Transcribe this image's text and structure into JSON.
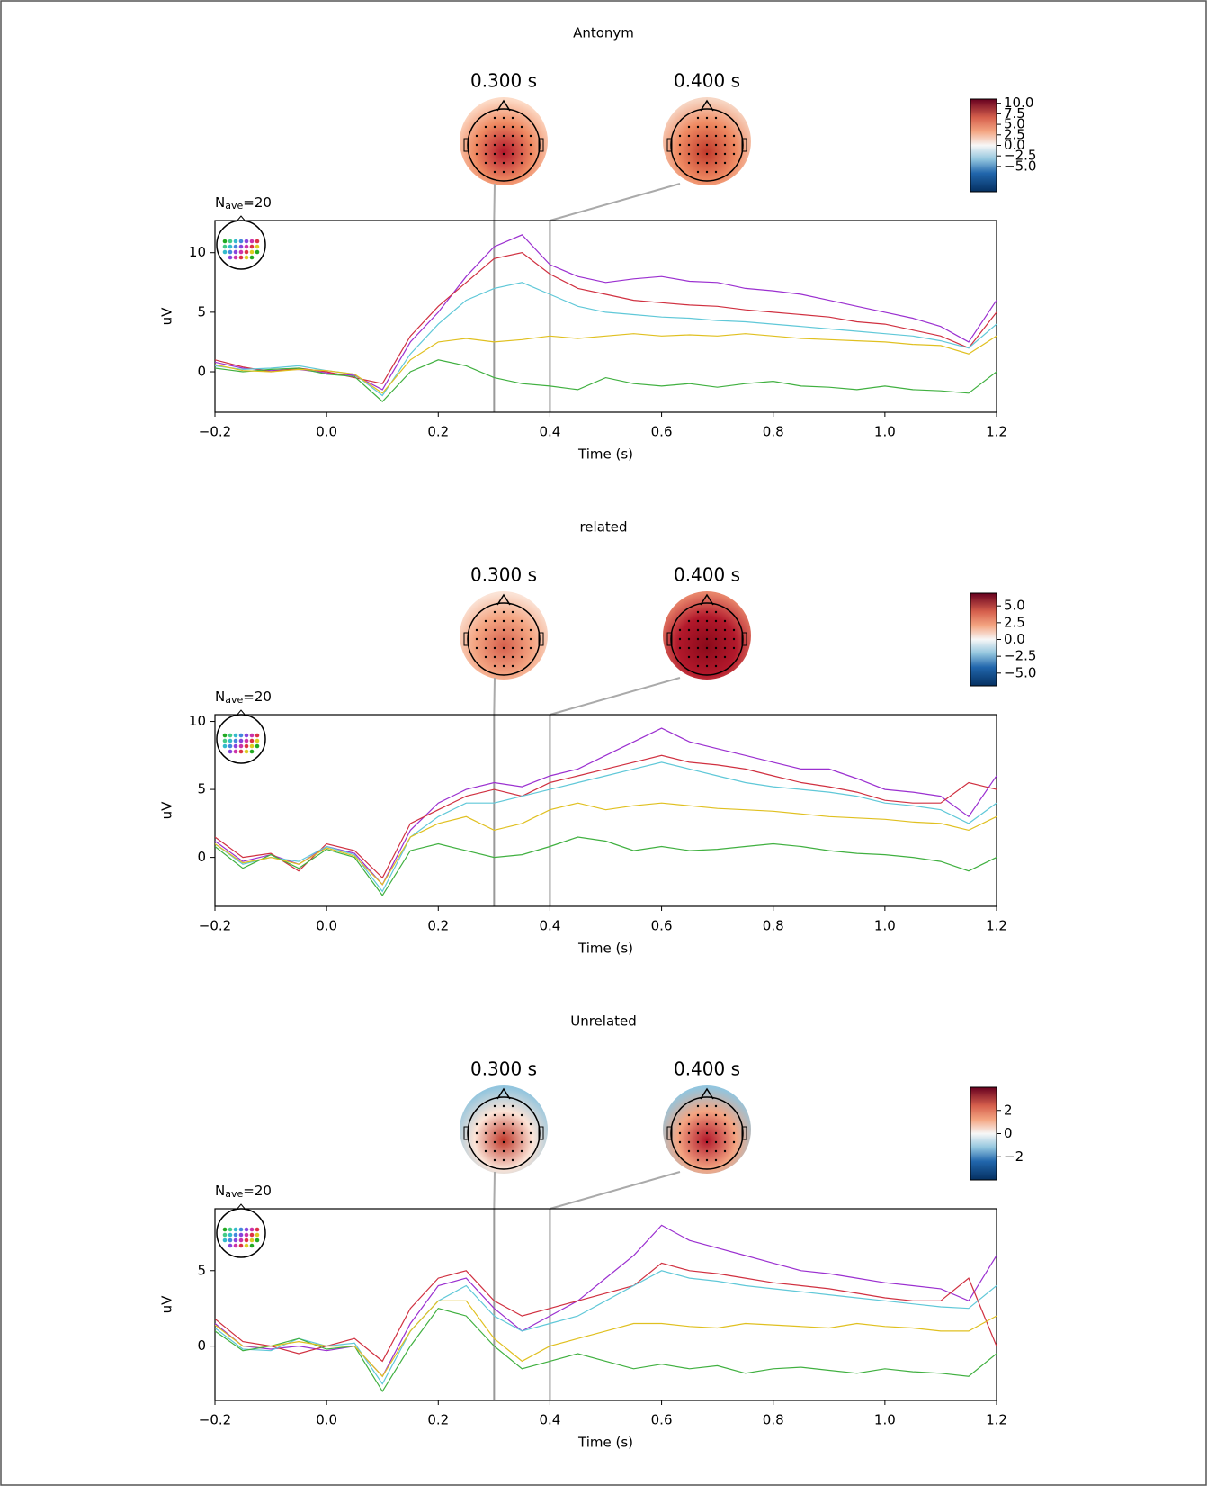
{
  "chart_data": [
    {
      "type": "line",
      "title": "Antonym",
      "annotation": [
        "N",
        "ave",
        "=20"
      ],
      "xlabel": "Time (s)",
      "ylabel": "uV",
      "x": [
        -0.2,
        -0.15,
        -0.1,
        -0.05,
        0,
        0.05,
        0.1,
        0.15,
        0.2,
        0.25,
        0.3,
        0.35,
        0.4,
        0.45,
        0.5,
        0.55,
        0.6,
        0.65,
        0.7,
        0.75,
        0.8,
        0.85,
        0.9,
        0.95,
        1.0,
        1.05,
        1.1,
        1.15,
        1.2
      ],
      "xlim": [
        -0.2,
        1.2
      ],
      "xticks": [
        {
          "value": -0.2,
          "label": "−0.2"
        },
        {
          "value": 0,
          "label": "0.0"
        },
        0.2,
        0.4,
        0.6,
        0.8,
        {
          "value": 1,
          "label": "1.0"
        },
        1.2
      ],
      "ylim": [
        -3.4,
        12.7
      ],
      "yticks": [
        0,
        5,
        10
      ],
      "topomap_times": [
        {
          "value": 0.3,
          "label": "0.300 s"
        },
        {
          "value": 0.4,
          "label": "0.400 s"
        }
      ],
      "topomap_colors": [
        [
          "#b2182b",
          "#ef8a62",
          "#fddbc7"
        ],
        [
          "#c0392b",
          "#ef8a62",
          "#f7d6c4"
        ]
      ],
      "colorbar": {
        "lim": [
          -11,
          11
        ],
        "ticks": [
          {
            "value": 10,
            "label": "10.0"
          },
          {
            "value": 7.5,
            "label": "7.5"
          },
          {
            "value": 5,
            "label": "5.0"
          },
          {
            "value": 2.5,
            "label": "2.5"
          },
          {
            "value": 0,
            "label": "0.0"
          },
          {
            "value": -2.5,
            "label": "−2.5"
          },
          {
            "value": -5,
            "label": "−5.0"
          }
        ]
      },
      "series": [
        {
          "color": "#9b30d0",
          "values": [
            0.8,
            0.3,
            0.1,
            0.2,
            -0.1,
            -0.3,
            -1.5,
            2.5,
            5,
            8,
            10.5,
            11.5,
            9,
            8,
            7.5,
            7.8,
            8,
            7.6,
            7.5,
            7,
            6.8,
            6.5,
            6,
            5.5,
            5,
            4.5,
            3.8,
            2.5,
            6
          ]
        },
        {
          "color": "#d03040",
          "values": [
            1,
            0.4,
            0,
            0.3,
            0,
            -0.5,
            -1,
            3,
            5.5,
            7.5,
            9.5,
            10,
            8.2,
            7,
            6.5,
            6,
            5.8,
            5.6,
            5.5,
            5.2,
            5,
            4.8,
            4.6,
            4.2,
            4,
            3.5,
            3,
            2,
            5
          ]
        },
        {
          "color": "#60c8d8",
          "values": [
            0.5,
            0.2,
            0.3,
            0.5,
            0.1,
            -0.2,
            -2,
            1.5,
            4,
            6,
            7,
            7.5,
            6.5,
            5.5,
            5,
            4.8,
            4.6,
            4.5,
            4.3,
            4.2,
            4,
            3.8,
            3.6,
            3.4,
            3.2,
            3,
            2.6,
            2,
            4
          ]
        },
        {
          "color": "#40b040",
          "values": [
            0.3,
            0,
            0.2,
            0.3,
            -0.2,
            -0.4,
            -2.5,
            0,
            1,
            0.5,
            -0.5,
            -1,
            -1.2,
            -1.5,
            -0.5,
            -1,
            -1.2,
            -1,
            -1.3,
            -1,
            -0.8,
            -1.2,
            -1.3,
            -1.5,
            -1.2,
            -1.5,
            -1.6,
            -1.8,
            0
          ]
        },
        {
          "color": "#e0c020",
          "values": [
            0.6,
            0.1,
            0,
            0.2,
            0.1,
            -0.2,
            -1.8,
            1,
            2.5,
            2.8,
            2.5,
            2.7,
            3,
            2.8,
            3,
            3.2,
            3,
            3.1,
            3,
            3.2,
            3,
            2.8,
            2.7,
            2.6,
            2.5,
            2.3,
            2.2,
            1.5,
            3
          ]
        }
      ]
    },
    {
      "type": "line",
      "title": "related",
      "annotation": [
        "N",
        "ave",
        "=20"
      ],
      "xlabel": "Time (s)",
      "ylabel": "uV",
      "x": [
        -0.2,
        -0.15,
        -0.1,
        -0.05,
        0,
        0.05,
        0.1,
        0.15,
        0.2,
        0.25,
        0.3,
        0.35,
        0.4,
        0.45,
        0.5,
        0.55,
        0.6,
        0.65,
        0.7,
        0.75,
        0.8,
        0.85,
        0.9,
        0.95,
        1.0,
        1.05,
        1.1,
        1.15,
        1.2
      ],
      "xlim": [
        -0.2,
        1.2
      ],
      "xticks": [
        {
          "value": -0.2,
          "label": "−0.2"
        },
        {
          "value": 0,
          "label": "0.0"
        },
        0.2,
        0.4,
        0.6,
        0.8,
        {
          "value": 1,
          "label": "1.0"
        },
        1.2
      ],
      "ylim": [
        -3.6,
        10.5
      ],
      "yticks": [
        0,
        5,
        10
      ],
      "topomap_times": [
        {
          "value": 0.3,
          "label": "0.300 s"
        },
        {
          "value": 0.4,
          "label": "0.400 s"
        }
      ],
      "topomap_colors": [
        [
          "#d6604d",
          "#f4a582",
          "#fbe3d6"
        ],
        [
          "#8b0a1a",
          "#b2182b",
          "#e8856a"
        ]
      ],
      "colorbar": {
        "lim": [
          -6.9,
          6.9
        ],
        "ticks": [
          {
            "value": 5,
            "label": "5.0"
          },
          {
            "value": 2.5,
            "label": "2.5"
          },
          {
            "value": 0,
            "label": "0.0"
          },
          {
            "value": -2.5,
            "label": "−2.5"
          },
          {
            "value": -5,
            "label": "−5.0"
          }
        ]
      },
      "series": [
        {
          "color": "#9b30d0",
          "values": [
            1.2,
            -0.3,
            0.2,
            -0.5,
            0.8,
            0.3,
            -2,
            2,
            4,
            5,
            5.5,
            5.2,
            6,
            6.5,
            7.5,
            8.5,
            9.5,
            8.5,
            8,
            7.5,
            7,
            6.5,
            6.5,
            5.8,
            5,
            4.8,
            4.5,
            3,
            6
          ]
        },
        {
          "color": "#d03040",
          "values": [
            1.5,
            0,
            0.3,
            -1,
            1,
            0.5,
            -1.5,
            2.5,
            3.5,
            4.5,
            5,
            4.5,
            5.5,
            6,
            6.5,
            7,
            7.5,
            7,
            6.8,
            6.5,
            6,
            5.5,
            5.2,
            4.8,
            4.2,
            4,
            4,
            5.5,
            5
          ]
        },
        {
          "color": "#60c8d8",
          "values": [
            1,
            -0.5,
            0,
            -0.3,
            0.8,
            0.2,
            -2.5,
            1.5,
            3,
            4,
            4,
            4.5,
            5,
            5.5,
            6,
            6.5,
            7,
            6.5,
            6,
            5.5,
            5.2,
            5,
            4.8,
            4.5,
            4,
            3.8,
            3.5,
            2.5,
            4
          ]
        },
        {
          "color": "#40b040",
          "values": [
            0.8,
            -0.8,
            0.2,
            -0.8,
            0.6,
            0,
            -2.8,
            0.5,
            1,
            0.5,
            0,
            0.2,
            0.8,
            1.5,
            1.2,
            0.5,
            0.8,
            0.5,
            0.6,
            0.8,
            1,
            0.8,
            0.5,
            0.3,
            0.2,
            0,
            -0.3,
            -1,
            0
          ]
        },
        {
          "color": "#e0c020",
          "values": [
            1,
            -0.4,
            0,
            -0.5,
            0.7,
            0.1,
            -2,
            1.5,
            2.5,
            3,
            2,
            2.5,
            3.5,
            4,
            3.5,
            3.8,
            4,
            3.8,
            3.6,
            3.5,
            3.4,
            3.2,
            3,
            2.9,
            2.8,
            2.6,
            2.5,
            2,
            3
          ]
        }
      ]
    },
    {
      "type": "line",
      "title": "Unrelated",
      "annotation": [
        "N",
        "ave",
        "=20"
      ],
      "xlabel": "Time (s)",
      "ylabel": "uV",
      "x": [
        -0.2,
        -0.15,
        -0.1,
        -0.05,
        0,
        0.05,
        0.1,
        0.15,
        0.2,
        0.25,
        0.3,
        0.35,
        0.4,
        0.45,
        0.5,
        0.55,
        0.6,
        0.65,
        0.7,
        0.75,
        0.8,
        0.85,
        0.9,
        0.95,
        1.0,
        1.05,
        1.1,
        1.15,
        1.2
      ],
      "xlim": [
        -0.2,
        1.2
      ],
      "xticks": [
        {
          "value": -0.2,
          "label": "−0.2"
        },
        {
          "value": 0,
          "label": "0.0"
        },
        0.2,
        0.4,
        0.6,
        0.8,
        {
          "value": 1,
          "label": "1.0"
        },
        1.2
      ],
      "ylim": [
        -3.6,
        9.1
      ],
      "yticks": [
        0,
        5
      ],
      "topomap_times": [
        {
          "value": 0.3,
          "label": "0.300 s"
        },
        {
          "value": 0.4,
          "label": "0.400 s"
        }
      ],
      "topomap_colors": [
        [
          "#c0392b",
          "#fbe3d6",
          "#92c5de"
        ],
        [
          "#b2182b",
          "#f4a582",
          "#92c5de"
        ]
      ],
      "colorbar": {
        "lim": [
          -4,
          4
        ],
        "ticks": [
          2,
          0,
          {
            "value": -2,
            "label": "−2"
          }
        ]
      },
      "series": [
        {
          "color": "#9b30d0",
          "values": [
            1.5,
            0,
            -0.2,
            0,
            -0.3,
            0,
            -2,
            1.5,
            4,
            4.5,
            2.5,
            1,
            2,
            3,
            4.5,
            6,
            8,
            7,
            6.5,
            6,
            5.5,
            5,
            4.8,
            4.5,
            4.2,
            4,
            3.8,
            3,
            6
          ]
        },
        {
          "color": "#d03040",
          "values": [
            1.8,
            0.3,
            0,
            -0.5,
            0,
            0.5,
            -1,
            2.5,
            4.5,
            5,
            3,
            2,
            2.5,
            3,
            3.5,
            4,
            5.5,
            5,
            4.8,
            4.5,
            4.2,
            4,
            3.8,
            3.5,
            3.2,
            3,
            3,
            4.5,
            0
          ]
        },
        {
          "color": "#60c8d8",
          "values": [
            1.2,
            -0.2,
            -0.3,
            0.5,
            0,
            0.2,
            -2.5,
            1,
            3,
            4,
            2,
            1,
            1.5,
            2,
            3,
            4,
            5,
            4.5,
            4.3,
            4,
            3.8,
            3.6,
            3.4,
            3.2,
            3,
            2.8,
            2.6,
            2.5,
            4
          ]
        },
        {
          "color": "#40b040",
          "values": [
            1,
            -0.3,
            0,
            0.5,
            -0.2,
            0,
            -3,
            0,
            2.5,
            2,
            0,
            -1.5,
            -1,
            -0.5,
            -1,
            -1.5,
            -1.2,
            -1.5,
            -1.3,
            -1.8,
            -1.5,
            -1.4,
            -1.6,
            -1.8,
            -1.5,
            -1.7,
            -1.8,
            -2,
            -0.5
          ]
        },
        {
          "color": "#e0c020",
          "values": [
            1.4,
            0,
            0,
            0.3,
            0,
            0,
            -2,
            1,
            3,
            3,
            0.5,
            -1,
            0,
            0.5,
            1,
            1.5,
            1.5,
            1.3,
            1.2,
            1.5,
            1.4,
            1.3,
            1.2,
            1.5,
            1.3,
            1.2,
            1,
            1,
            2
          ]
        }
      ]
    }
  ]
}
